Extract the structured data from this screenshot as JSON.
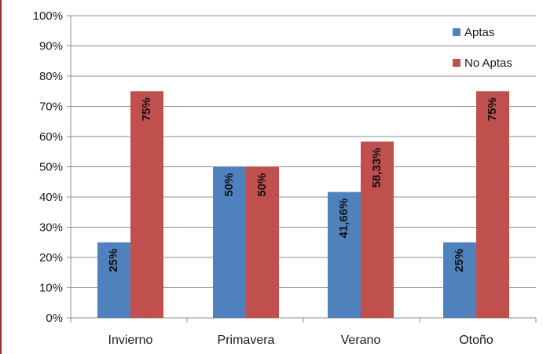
{
  "chart_data": {
    "type": "bar",
    "categories": [
      "Invierno",
      "Primavera",
      "Verano",
      "Otoño"
    ],
    "series": [
      {
        "name": "Aptas",
        "values": [
          25,
          50,
          41.66,
          25
        ],
        "labels": [
          "25%",
          "50%",
          "41,66%",
          "25%"
        ],
        "color": "#4f81bd"
      },
      {
        "name": "No Aptas",
        "values": [
          75,
          50,
          58.33,
          75
        ],
        "labels": [
          "75%",
          "50%",
          "58,33%",
          "75%"
        ],
        "color": "#c0504d"
      }
    ],
    "ylim": [
      0,
      100
    ],
    "y_ticks": [
      0,
      10,
      20,
      30,
      40,
      50,
      60,
      70,
      80,
      90,
      100
    ],
    "y_tick_labels": [
      "0%",
      "10%",
      "20%",
      "30%",
      "40%",
      "50%",
      "60%",
      "70%",
      "80%",
      "90%",
      "100%"
    ],
    "grid": true,
    "legend_position": "top-right",
    "data_label_orientation": "vertical",
    "title": "",
    "xlabel": "",
    "ylabel": ""
  }
}
